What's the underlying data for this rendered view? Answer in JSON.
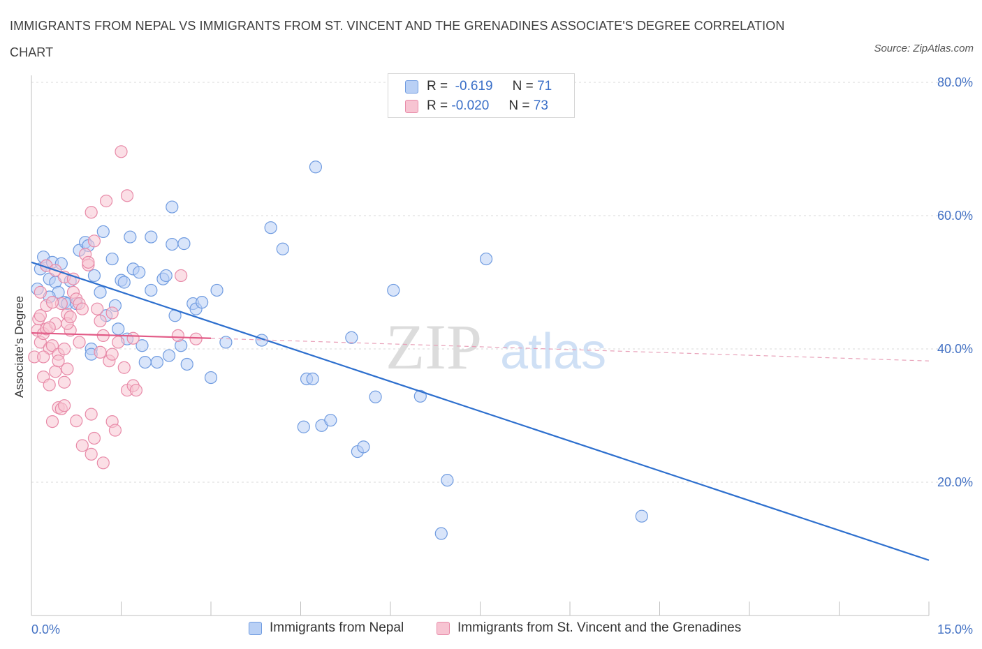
{
  "header": {
    "title": "IMMIGRANTS FROM NEPAL VS IMMIGRANTS FROM ST. VINCENT AND THE GRENADINES ASSOCIATE'S DEGREE CORRELATION CHART",
    "source": "Source: ZipAtlas.com"
  },
  "watermark": {
    "zip": "ZIP",
    "atlas": "atlas"
  },
  "legend": {
    "r_label": "R =",
    "n_label": "N =",
    "rows": [
      {
        "r": "-0.619",
        "n": "71",
        "fill": "#b9d0f5",
        "stroke": "#6f9be0"
      },
      {
        "r": "-0.020",
        "n": "73",
        "fill": "#f7c4d2",
        "stroke": "#e88aa8"
      }
    ]
  },
  "bottom_legend": [
    {
      "label": "Immigrants from Nepal"
    },
    {
      "label": "Immigrants from St. Vincent and the Grenadines"
    }
  ],
  "chart_data": {
    "type": "scatter",
    "ylabel": "Associate's Degree",
    "xlabel": "",
    "xlim": [
      0,
      15
    ],
    "ylim": [
      0,
      80
    ],
    "x_tick_labels": [
      {
        "value": 0,
        "label": "0.0%"
      },
      {
        "value": 15,
        "label": "15.0%"
      }
    ],
    "y_tick_labels": [
      {
        "value": 20,
        "label": "20.0%"
      },
      {
        "value": 40,
        "label": "40.0%"
      },
      {
        "value": 60,
        "label": "60.0%"
      },
      {
        "value": 80,
        "label": "80.0%"
      }
    ],
    "grid": {
      "horizontal": true,
      "style": "dashed"
    },
    "series": [
      {
        "name": "Immigrants from Nepal",
        "color": "#6f9be0",
        "fill": "#b9d0f5",
        "trend_color": "#2d6fce",
        "trend": {
          "x0": 0,
          "y0": 53.0,
          "x1": 15,
          "y1": 8.3
        },
        "points": [
          [
            0.1,
            49.0
          ],
          [
            0.15,
            52.0
          ],
          [
            0.2,
            53.8
          ],
          [
            0.25,
            52.5
          ],
          [
            0.3,
            50.5
          ],
          [
            0.35,
            53.0
          ],
          [
            0.4,
            50.0
          ],
          [
            0.45,
            48.5
          ],
          [
            0.55,
            47.0
          ],
          [
            0.6,
            46.8
          ],
          [
            0.75,
            46.8
          ],
          [
            0.8,
            54.8
          ],
          [
            0.9,
            56.0
          ],
          [
            0.95,
            55.5
          ],
          [
            1.05,
            51.0
          ],
          [
            1.0,
            40.0
          ],
          [
            1.0,
            39.2
          ],
          [
            1.15,
            48.5
          ],
          [
            1.2,
            57.6
          ],
          [
            1.25,
            45.0
          ],
          [
            1.35,
            53.5
          ],
          [
            1.4,
            46.5
          ],
          [
            1.45,
            43.0
          ],
          [
            1.5,
            50.3
          ],
          [
            1.55,
            50.0
          ],
          [
            1.6,
            41.5
          ],
          [
            1.65,
            56.8
          ],
          [
            1.7,
            52.0
          ],
          [
            1.8,
            51.5
          ],
          [
            1.85,
            40.5
          ],
          [
            1.9,
            38.0
          ],
          [
            2.0,
            48.8
          ],
          [
            2.0,
            56.8
          ],
          [
            2.1,
            38.0
          ],
          [
            2.2,
            50.5
          ],
          [
            2.25,
            51.0
          ],
          [
            2.35,
            61.3
          ],
          [
            2.3,
            39.0
          ],
          [
            2.35,
            55.7
          ],
          [
            2.4,
            45.0
          ],
          [
            2.5,
            40.5
          ],
          [
            2.55,
            55.8
          ],
          [
            2.6,
            37.7
          ],
          [
            2.7,
            46.8
          ],
          [
            2.75,
            46.0
          ],
          [
            2.85,
            47.0
          ],
          [
            3.0,
            35.7
          ],
          [
            3.1,
            48.8
          ],
          [
            3.25,
            41.0
          ],
          [
            3.85,
            41.3
          ],
          [
            4.0,
            58.2
          ],
          [
            4.2,
            55.0
          ],
          [
            4.55,
            28.3
          ],
          [
            4.6,
            35.5
          ],
          [
            4.7,
            35.5
          ],
          [
            4.75,
            67.3
          ],
          [
            4.85,
            28.5
          ],
          [
            5.0,
            29.3
          ],
          [
            5.35,
            41.7
          ],
          [
            5.45,
            24.6
          ],
          [
            5.55,
            25.3
          ],
          [
            5.75,
            32.8
          ],
          [
            6.05,
            48.8
          ],
          [
            6.5,
            32.9
          ],
          [
            6.85,
            12.3
          ],
          [
            6.95,
            20.3
          ],
          [
            7.6,
            53.5
          ],
          [
            10.2,
            14.9
          ],
          [
            0.5,
            52.8
          ],
          [
            0.65,
            50.2
          ],
          [
            0.3,
            47.8
          ]
        ]
      },
      {
        "name": "Immigrants from St. Vincent and the Grenadines",
        "color": "#e88aa8",
        "fill": "#f7c4d2",
        "trend_color": "#e25a86",
        "trend": {
          "x0": 0,
          "y0": 42.4,
          "x1": 3.0,
          "y1": 41.6,
          "x_dash_end": 15,
          "y_dash_end": 38.2
        },
        "points": [
          [
            0.05,
            38.8
          ],
          [
            0.1,
            42.8
          ],
          [
            0.12,
            44.5
          ],
          [
            0.15,
            41.0
          ],
          [
            0.15,
            45.0
          ],
          [
            0.2,
            42.3
          ],
          [
            0.2,
            35.8
          ],
          [
            0.25,
            43.0
          ],
          [
            0.25,
            46.5
          ],
          [
            0.3,
            34.6
          ],
          [
            0.3,
            40.1
          ],
          [
            0.35,
            29.1
          ],
          [
            0.35,
            40.5
          ],
          [
            0.4,
            43.8
          ],
          [
            0.4,
            36.6
          ],
          [
            0.45,
            39.2
          ],
          [
            0.45,
            31.2
          ],
          [
            0.5,
            46.8
          ],
          [
            0.5,
            31.0
          ],
          [
            0.55,
            31.5
          ],
          [
            0.55,
            40.0
          ],
          [
            0.6,
            37.0
          ],
          [
            0.6,
            45.2
          ],
          [
            0.65,
            42.8
          ],
          [
            0.7,
            48.5
          ],
          [
            0.75,
            29.2
          ],
          [
            0.75,
            47.5
          ],
          [
            0.8,
            46.8
          ],
          [
            0.85,
            25.5
          ],
          [
            0.9,
            54.2
          ],
          [
            0.95,
            52.6
          ],
          [
            1.0,
            30.2
          ],
          [
            1.0,
            24.2
          ],
          [
            1.05,
            26.6
          ],
          [
            1.1,
            46.0
          ],
          [
            1.15,
            44.2
          ],
          [
            1.2,
            42.0
          ],
          [
            1.2,
            22.9
          ],
          [
            1.3,
            38.2
          ],
          [
            1.35,
            29.1
          ],
          [
            1.35,
            39.2
          ],
          [
            1.4,
            27.8
          ],
          [
            1.45,
            41.0
          ],
          [
            1.5,
            69.6
          ],
          [
            1.55,
            37.2
          ],
          [
            1.6,
            33.8
          ],
          [
            1.7,
            34.5
          ],
          [
            1.75,
            33.8
          ],
          [
            1.6,
            63.0
          ],
          [
            1.25,
            62.2
          ],
          [
            1.0,
            60.5
          ],
          [
            2.5,
            51.0
          ],
          [
            2.45,
            42.0
          ],
          [
            2.75,
            41.5
          ],
          [
            0.55,
            50.8
          ],
          [
            0.7,
            50.5
          ],
          [
            0.35,
            47.0
          ],
          [
            0.6,
            43.8
          ],
          [
            0.95,
            53.0
          ],
          [
            1.05,
            56.2
          ],
          [
            0.25,
            52.5
          ],
          [
            0.4,
            51.8
          ],
          [
            0.15,
            48.5
          ],
          [
            0.8,
            41.0
          ],
          [
            1.15,
            39.5
          ],
          [
            0.55,
            35.0
          ],
          [
            0.45,
            38.2
          ],
          [
            1.7,
            41.6
          ],
          [
            0.65,
            44.8
          ],
          [
            1.35,
            45.4
          ],
          [
            0.3,
            43.2
          ],
          [
            0.2,
            38.8
          ],
          [
            0.85,
            46.0
          ]
        ]
      }
    ]
  }
}
